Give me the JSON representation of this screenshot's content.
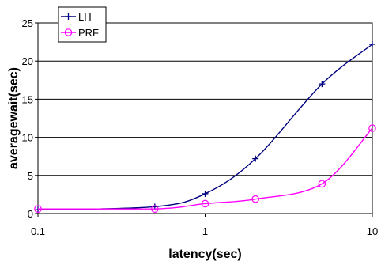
{
  "chart_data": {
    "type": "line",
    "xlabel": "latency(sec)",
    "ylabel": "averagewait(sec)",
    "x_scale": "log",
    "xlim": [
      0.1,
      10
    ],
    "ylim": [
      0,
      25
    ],
    "x_ticks": [
      0.1,
      1,
      10
    ],
    "x_tick_labels": [
      "0.1",
      "1",
      "10"
    ],
    "y_ticks": [
      0,
      5,
      10,
      15,
      20,
      25
    ],
    "y_tick_labels": [
      "0",
      "5",
      "10",
      "15",
      "20",
      "25"
    ],
    "grid": "horizontal",
    "legend_position": "top-left",
    "series": [
      {
        "name": "LH",
        "color": "#000080",
        "marker": "plus",
        "x": [
          0.1,
          0.5,
          1,
          2,
          5,
          10
        ],
        "y": [
          0.5,
          0.9,
          2.6,
          7.2,
          17.0,
          22.2
        ]
      },
      {
        "name": "PRF",
        "color": "#ff00ff",
        "marker": "circle",
        "x": [
          0.1,
          0.5,
          1,
          2,
          5,
          10
        ],
        "y": [
          0.6,
          0.6,
          1.3,
          1.9,
          3.9,
          11.2
        ]
      }
    ]
  }
}
